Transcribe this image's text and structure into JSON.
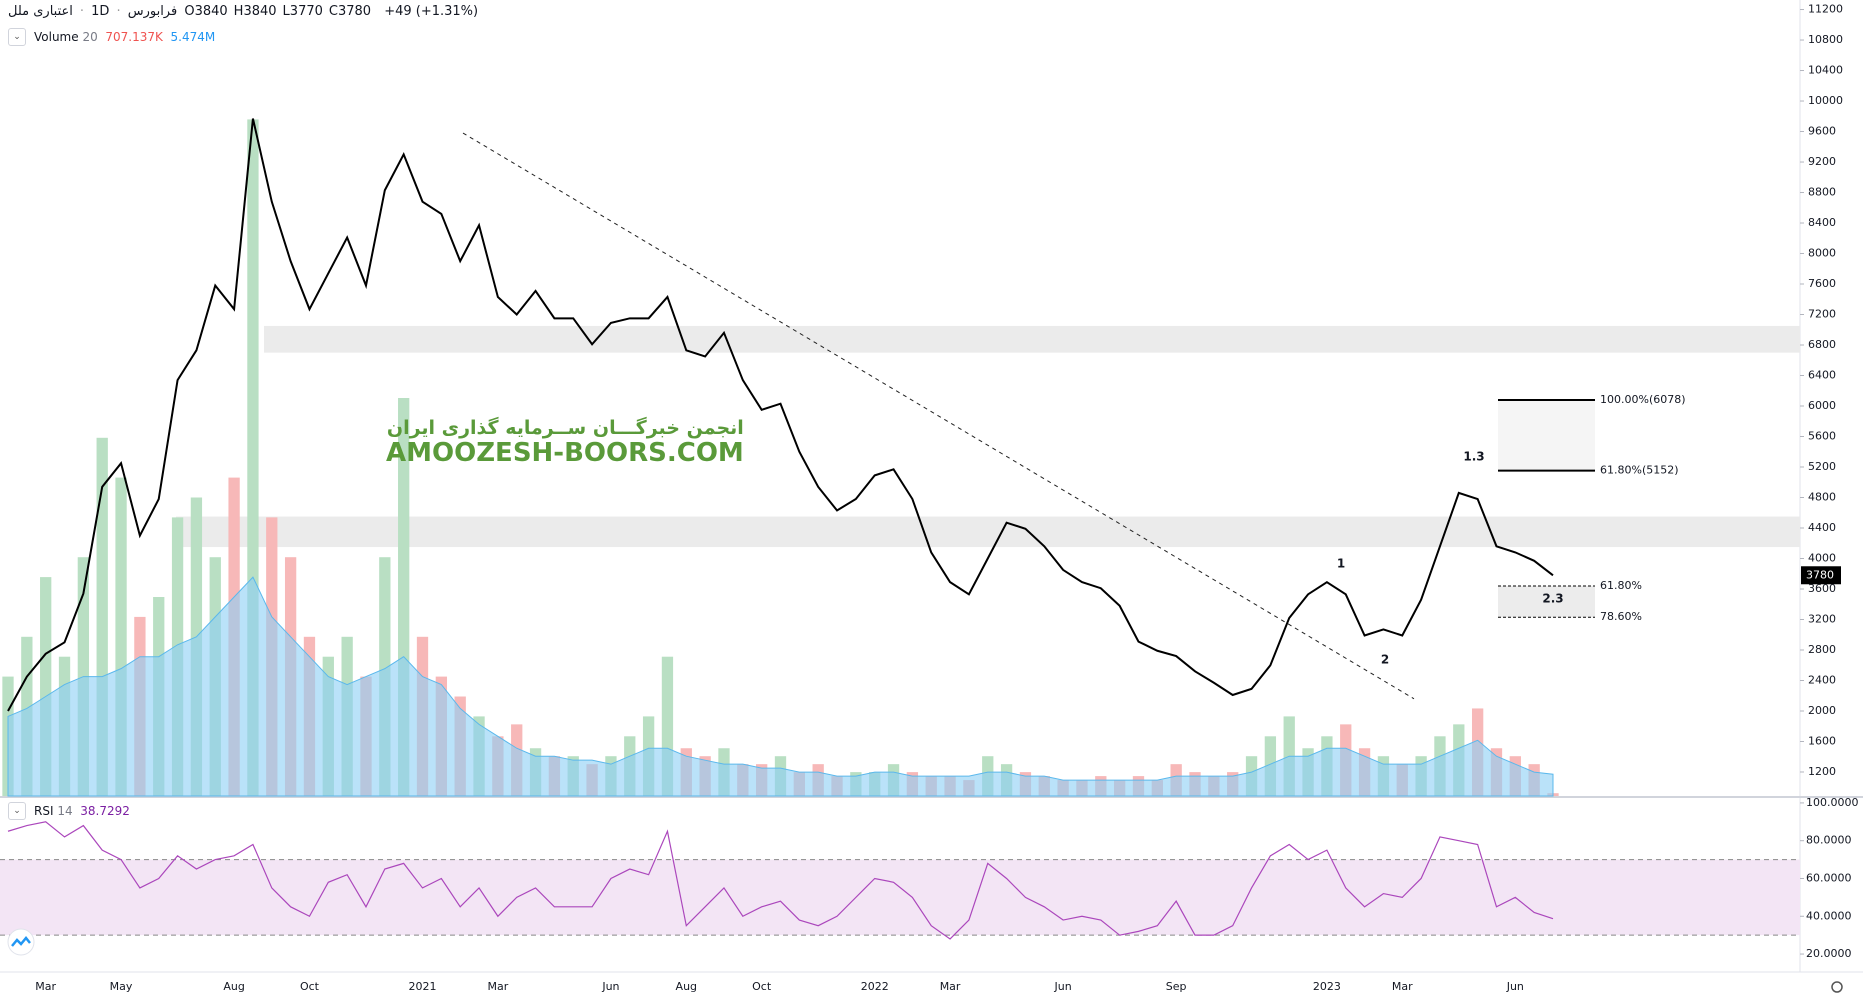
{
  "header": {
    "symbol": "اعتباری ملل",
    "interval": "1D",
    "exchange": "فرابورس",
    "ohlc": [
      {
        "label": "O",
        "value": 3840
      },
      {
        "label": "H",
        "value": 3840
      },
      {
        "label": "L",
        "value": 3770
      },
      {
        "label": "C",
        "value": 3780
      }
    ],
    "change": "+49 (+1.31%)"
  },
  "watermark": [
    "انجمن خبرگـــان ســرمایه گذاری ایران",
    "AMOOZESH-BOORS.COM"
  ],
  "chart_data": [
    {
      "type": "line",
      "name": "price",
      "color": "#000000",
      "categories": [
        null,
        null,
        "Mar",
        null,
        null,
        null,
        "May",
        null,
        null,
        null,
        null,
        null,
        "Aug",
        null,
        null,
        null,
        "Oct",
        null,
        null,
        null,
        null,
        null,
        "2021",
        null,
        null,
        null,
        "Mar",
        null,
        null,
        null,
        null,
        null,
        "Jun",
        null,
        null,
        null,
        "Aug",
        null,
        null,
        null,
        "Oct",
        null,
        null,
        null,
        null,
        null,
        "2022",
        null,
        null,
        null,
        "Mar",
        null,
        null,
        null,
        null,
        null,
        "Jun",
        null,
        null,
        null,
        null,
        null,
        "Sep",
        null,
        null,
        null,
        null,
        null,
        null,
        null,
        "2023",
        null,
        null,
        null,
        "Mar",
        null,
        null,
        null,
        null,
        null,
        "Jun",
        null,
        null
      ],
      "values": [
        2000,
        2450,
        2750,
        2900,
        3540,
        4940,
        5250,
        4300,
        4780,
        6340,
        6730,
        7580,
        7270,
        9770,
        8680,
        7900,
        7270,
        7740,
        8210,
        7580,
        8830,
        9300,
        8680,
        8520,
        7900,
        8370,
        7430,
        7200,
        7510,
        7150,
        7150,
        6810,
        7090,
        7150,
        7150,
        7430,
        6730,
        6650,
        6960,
        6340,
        5950,
        6030,
        5400,
        4940,
        4630,
        4780,
        5090,
        5170,
        4780,
        4080,
        3690,
        3530,
        4000,
        4470,
        4390,
        4160,
        3850,
        3690,
        3610,
        3380,
        2910,
        2790,
        2720,
        2520,
        2370,
        2210,
        2290,
        2600,
        3220,
        3530,
        3690,
        3530,
        2990,
        3070,
        2990,
        3460,
        4160,
        4860,
        4780,
        4160,
        4080,
        3970,
        3780
      ],
      "ylim": [
        885,
        11325
      ],
      "yticks": [
        1200,
        1600,
        2000,
        2400,
        2800,
        3200,
        3600,
        4000,
        4400,
        4800,
        5200,
        5600,
        6000,
        6400,
        6800,
        7200,
        7600,
        8000,
        8400,
        8800,
        9200,
        9600,
        10000,
        10400,
        10800,
        11200
      ],
      "grid": false,
      "zones": [
        [
          6700,
          7050
        ],
        [
          4150,
          4550
        ]
      ],
      "trendline": [
        9580,
        2160
      ],
      "fib_levels": [
        {
          "value": 6078,
          "label": "100.00%(6078)"
        },
        {
          "value": 5152,
          "label": "61.80%(5152)"
        },
        {
          "value": 3640,
          "label": "61.80%"
        },
        {
          "value": 3230,
          "label": "78.60%"
        }
      ],
      "wave_labels": [
        "1",
        "2",
        "1.3",
        "2.3"
      ]
    },
    {
      "type": "bar",
      "name": "Volume",
      "length": 20,
      "up_color": "#b9dfc3",
      "down_color": "#f7b8b8",
      "ma_color": "#8ccff5",
      "values": [
        30000000,
        40000000,
        55000000,
        35000000,
        60000000,
        90000000,
        80000000,
        45000000,
        50000000,
        70000000,
        75000000,
        60000000,
        80000000,
        170000000,
        70000000,
        60000000,
        40000000,
        35000000,
        40000000,
        30000000,
        60000000,
        100000000,
        40000000,
        30000000,
        25000000,
        20000000,
        15000000,
        18000000,
        12000000,
        10000000,
        10000000,
        8000000,
        10000000,
        15000000,
        20000000,
        35000000,
        12000000,
        10000000,
        12000000,
        8000000,
        8000000,
        10000000,
        6000000,
        8000000,
        5000000,
        6000000,
        6000000,
        8000000,
        6000000,
        5000000,
        5000000,
        4000000,
        10000000,
        8000000,
        6000000,
        5000000,
        4000000,
        4000000,
        5000000,
        4000000,
        5000000,
        4000000,
        8000000,
        6000000,
        5000000,
        6000000,
        10000000,
        15000000,
        20000000,
        12000000,
        15000000,
        18000000,
        12000000,
        10000000,
        8000000,
        10000000,
        15000000,
        18000000,
        22000000,
        12000000,
        10000000,
        8000000,
        707137
      ],
      "ma_values": [
        20000000,
        22000000,
        25000000,
        28000000,
        30000000,
        30000000,
        32000000,
        35000000,
        35000000,
        38000000,
        40000000,
        45000000,
        50000000,
        55000000,
        45000000,
        40000000,
        35000000,
        30000000,
        28000000,
        30000000,
        32000000,
        35000000,
        30000000,
        28000000,
        22000000,
        18000000,
        15000000,
        12000000,
        10000000,
        10000000,
        9000000,
        9000000,
        8000000,
        10000000,
        12000000,
        12000000,
        10000000,
        9000000,
        8000000,
        8000000,
        7000000,
        7000000,
        6000000,
        6000000,
        5000000,
        5000000,
        6000000,
        6000000,
        5000000,
        5000000,
        5000000,
        5000000,
        6000000,
        6000000,
        5000000,
        5000000,
        4000000,
        4000000,
        4000000,
        4000000,
        4000000,
        4000000,
        5000000,
        5000000,
        5000000,
        5000000,
        6000000,
        8000000,
        10000000,
        10000000,
        12000000,
        12000000,
        10000000,
        8000000,
        8000000,
        8000000,
        10000000,
        12000000,
        14000000,
        10000000,
        8000000,
        6000000,
        5474000
      ],
      "legend_values": [
        {
          "value": 707137,
          "label": "707.137K"
        },
        {
          "value": 5474000,
          "label": "5.474M"
        }
      ],
      "ylim": [
        0,
        200000000
      ]
    },
    {
      "type": "line",
      "name": "RSI",
      "length": 14,
      "color": "#ab47bc",
      "band_color": "#f3e5f5",
      "values": [
        85,
        88,
        90,
        82,
        88,
        75,
        70,
        55,
        60,
        72,
        65,
        70,
        72,
        78,
        55,
        45,
        40,
        58,
        62,
        45,
        65,
        68,
        55,
        60,
        45,
        55,
        40,
        50,
        55,
        45,
        45,
        45,
        60,
        65,
        62,
        85,
        35,
        45,
        55,
        40,
        45,
        48,
        38,
        35,
        40,
        50,
        60,
        58,
        50,
        35,
        28,
        38,
        68,
        60,
        50,
        45,
        38,
        40,
        38,
        30,
        32,
        35,
        48,
        30,
        30,
        35,
        55,
        72,
        78,
        70,
        75,
        55,
        45,
        52,
        50,
        60,
        82,
        80,
        78,
        45,
        50,
        42,
        38.7292
      ],
      "band": [
        30,
        70
      ],
      "ylim": [
        10.5,
        102.6
      ],
      "yticks": [
        {
          "value": 20,
          "label": "20.0000"
        },
        {
          "value": 40,
          "label": "40.0000"
        },
        {
          "value": 60,
          "label": "60.0000"
        },
        {
          "value": 80,
          "label": "80.0000"
        },
        {
          "value": 100,
          "label": "100.0000"
        }
      ]
    }
  ]
}
